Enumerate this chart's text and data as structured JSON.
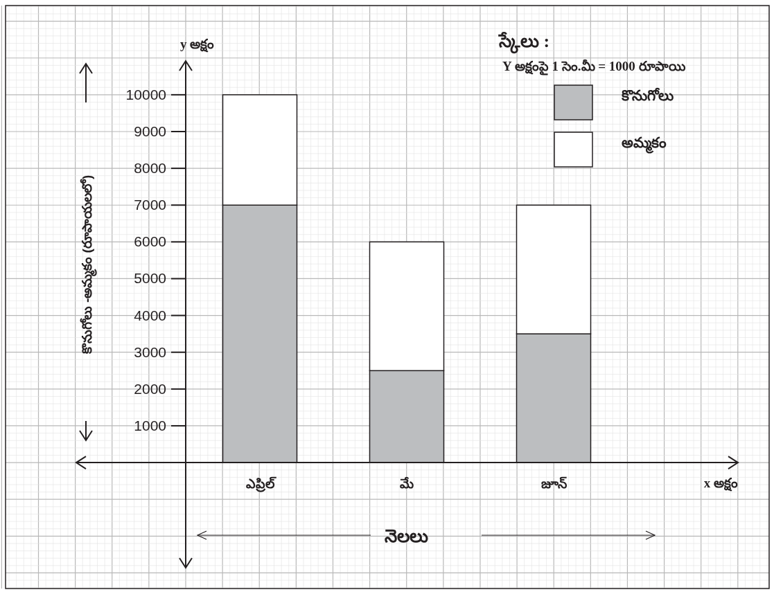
{
  "chart_data": {
    "type": "bar",
    "stacked": true,
    "categories": [
      "ఎప్రిల్",
      "మే",
      "జూన్"
    ],
    "series": [
      {
        "name": "కొనుగోలు",
        "color": "#bcbec0",
        "values": [
          7000,
          2500,
          3500
        ]
      },
      {
        "name": "అమ్మకం",
        "color": "#ffffff",
        "values": [
          3000,
          3500,
          3500
        ]
      }
    ],
    "ylim": [
      -2860,
      10920
    ],
    "yticks": [
      1000,
      2000,
      3000,
      4000,
      5000,
      6000,
      7000,
      8000,
      9000,
      10000
    ],
    "xlabel": "నెలలు",
    "ylabel": "కొనుగోలు -అమ్మకం (రూపాయలలో)",
    "annotations": [
      "స్కేలు :",
      "Y అక్షంపై 1 సెం.మీ = 1000 రూపాయి",
      "y అక్షం",
      "x అక్షం"
    ],
    "legend": "top right",
    "grid": true
  }
}
